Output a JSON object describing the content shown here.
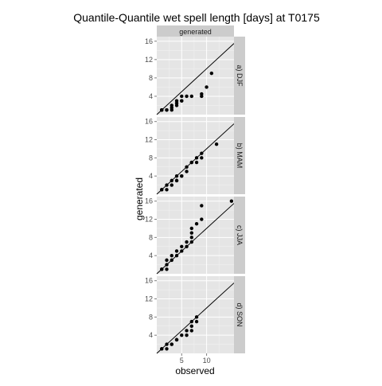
{
  "chart_data": {
    "type": "scatter",
    "title": "Quantile-Quantile wet spell length [days] at T0175",
    "xlabel": "observed",
    "ylabel": "generated",
    "column_strip": "generated",
    "xlim": [
      0,
      15.5
    ],
    "ylim": [
      0,
      17
    ],
    "x_ticks": [
      5,
      10
    ],
    "y_ticks": [
      4,
      8,
      12,
      16
    ],
    "reference_line": {
      "slope": 1,
      "intercept": 0
    },
    "grid": true,
    "colors": {
      "panel_bg": "#e5e5e5",
      "strip_bg": "#cccccc",
      "grid": "#ffffff",
      "point": "#000000",
      "line": "#000000"
    },
    "panels": [
      {
        "label": "a) DJF",
        "points": [
          [
            1,
            1
          ],
          [
            1,
            1
          ],
          [
            1,
            1
          ],
          [
            1,
            1
          ],
          [
            2,
            1
          ],
          [
            2,
            1
          ],
          [
            3,
            2
          ],
          [
            3,
            1.5
          ],
          [
            3,
            1
          ],
          [
            4,
            2
          ],
          [
            4,
            3
          ],
          [
            4,
            2.5
          ],
          [
            5,
            3
          ],
          [
            5,
            4
          ],
          [
            5,
            3
          ],
          [
            6,
            4
          ],
          [
            7,
            4
          ],
          [
            9,
            4
          ],
          [
            9,
            4.5
          ],
          [
            10,
            6
          ],
          [
            11,
            9
          ]
        ]
      },
      {
        "label": "b) MAM",
        "points": [
          [
            1,
            1
          ],
          [
            1,
            1
          ],
          [
            2,
            1
          ],
          [
            2,
            2
          ],
          [
            3,
            2
          ],
          [
            3,
            3
          ],
          [
            4,
            3
          ],
          [
            4,
            3
          ],
          [
            4,
            4
          ],
          [
            5,
            4
          ],
          [
            5,
            4
          ],
          [
            6,
            5
          ],
          [
            6,
            6
          ],
          [
            7,
            7
          ],
          [
            7,
            7
          ],
          [
            8,
            8
          ],
          [
            8,
            7
          ],
          [
            9,
            8
          ],
          [
            9,
            9
          ],
          [
            12,
            11
          ]
        ]
      },
      {
        "label": "c) JJA",
        "points": [
          [
            1,
            1
          ],
          [
            1,
            1
          ],
          [
            2,
            1
          ],
          [
            2,
            2
          ],
          [
            2,
            3
          ],
          [
            3,
            3
          ],
          [
            3,
            4
          ],
          [
            4,
            4
          ],
          [
            4,
            5
          ],
          [
            5,
            5
          ],
          [
            5,
            6
          ],
          [
            6,
            6
          ],
          [
            6,
            7
          ],
          [
            7,
            7
          ],
          [
            7,
            8
          ],
          [
            7,
            9
          ],
          [
            7,
            10
          ],
          [
            8,
            11
          ],
          [
            9,
            12
          ],
          [
            9,
            15
          ],
          [
            15,
            16
          ]
        ]
      },
      {
        "label": "d) SON",
        "points": [
          [
            1,
            1
          ],
          [
            1,
            1
          ],
          [
            2,
            1
          ],
          [
            2,
            2
          ],
          [
            3,
            2
          ],
          [
            3,
            2
          ],
          [
            4,
            3
          ],
          [
            4,
            3
          ],
          [
            5,
            4
          ],
          [
            6,
            4
          ],
          [
            6,
            5
          ],
          [
            7,
            5
          ],
          [
            7,
            6
          ],
          [
            7,
            7
          ],
          [
            8,
            7
          ],
          [
            8,
            8
          ]
        ]
      }
    ]
  }
}
